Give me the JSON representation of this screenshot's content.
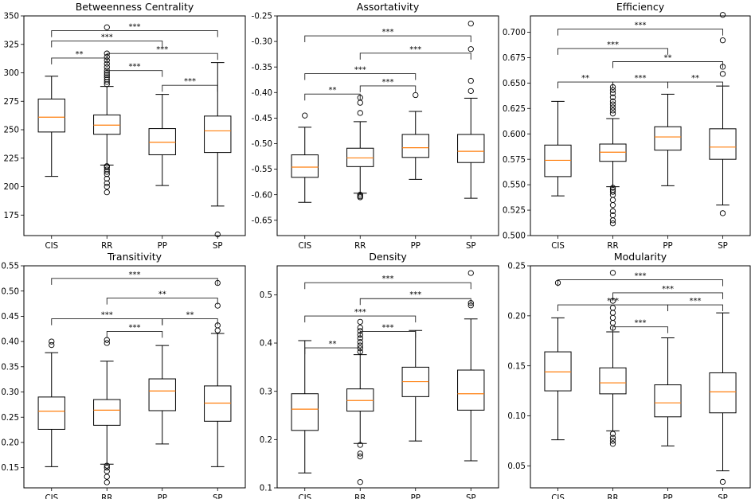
{
  "figure": {
    "group_labels": [
      "CIS",
      "RR",
      "PP",
      "SP"
    ],
    "colors": {
      "median": "#ff7f0e",
      "box_edge": "#000000",
      "background": "#ffffff"
    }
  },
  "chart_data": [
    {
      "type": "boxplot",
      "title": "Betweenness Centrality",
      "categories": [
        "CIS",
        "RR",
        "PP",
        "SP"
      ],
      "ylim": [
        157,
        350
      ],
      "yticks": [
        175,
        200,
        225,
        250,
        275,
        300,
        325,
        350
      ],
      "yfmt": 0,
      "boxes": [
        {
          "name": "CIS",
          "whislo": 209,
          "q1": 248,
          "med": 261,
          "q3": 277,
          "whishi": 297,
          "fliers": []
        },
        {
          "name": "RR",
          "whislo": 219,
          "q1": 246,
          "med": 254,
          "q3": 263,
          "whishi": 288,
          "fliers": [
            195,
            200,
            203,
            207,
            211,
            213,
            215,
            217,
            218,
            290,
            292,
            294,
            296,
            298,
            300,
            302,
            305,
            308,
            311,
            314,
            317,
            340
          ]
        },
        {
          "name": "PP",
          "whislo": 201,
          "q1": 228,
          "med": 239,
          "q3": 251,
          "whishi": 281,
          "fliers": []
        },
        {
          "name": "SP",
          "whislo": 183,
          "q1": 230,
          "med": 249,
          "q3": 262,
          "whishi": 309,
          "fliers": [
            158
          ]
        }
      ],
      "brackets": [
        {
          "from": "CIS",
          "to": "SP",
          "y": 337,
          "label": "***"
        },
        {
          "from": "CIS",
          "to": "PP",
          "y": 328,
          "label": "***"
        },
        {
          "from": "CIS",
          "to": "RR",
          "y": 313,
          "label": "**"
        },
        {
          "from": "RR",
          "to": "SP",
          "y": 317,
          "label": "***"
        },
        {
          "from": "RR",
          "to": "PP",
          "y": 302,
          "label": "***"
        },
        {
          "from": "PP",
          "to": "SP",
          "y": 289,
          "label": "***"
        }
      ]
    },
    {
      "type": "boxplot",
      "title": "Assortativity",
      "categories": [
        "CIS",
        "RR",
        "PP",
        "SP"
      ],
      "ylim": [
        -0.68,
        -0.25
      ],
      "yticks": [
        -0.65,
        -0.6,
        -0.55,
        -0.5,
        -0.45,
        -0.4,
        -0.35,
        -0.3,
        -0.25
      ],
      "yfmt": 2,
      "boxes": [
        {
          "name": "CIS",
          "whislo": -0.615,
          "q1": -0.566,
          "med": -0.546,
          "q3": -0.522,
          "whishi": -0.468,
          "fliers": [
            -0.445
          ]
        },
        {
          "name": "RR",
          "whislo": -0.597,
          "q1": -0.545,
          "med": -0.528,
          "q3": -0.509,
          "whishi": -0.457,
          "fliers": [
            -0.605,
            -0.603,
            -0.6,
            -0.44,
            -0.42,
            -0.41
          ]
        },
        {
          "name": "PP",
          "whislo": -0.57,
          "q1": -0.527,
          "med": -0.508,
          "q3": -0.482,
          "whishi": -0.437,
          "fliers": [
            -0.405
          ]
        },
        {
          "name": "SP",
          "whislo": -0.607,
          "q1": -0.537,
          "med": -0.515,
          "q3": -0.482,
          "whishi": -0.411,
          "fliers": [
            -0.397,
            -0.377,
            -0.315,
            -0.265
          ]
        }
      ],
      "brackets": [
        {
          "from": "CIS",
          "to": "SP",
          "y": -0.289,
          "label": "***"
        },
        {
          "from": "RR",
          "to": "SP",
          "y": -0.323,
          "label": "***"
        },
        {
          "from": "CIS",
          "to": "PP",
          "y": -0.363,
          "label": "***"
        },
        {
          "from": "RR",
          "to": "PP",
          "y": -0.387,
          "label": "***"
        },
        {
          "from": "CIS",
          "to": "RR",
          "y": -0.403,
          "label": "**"
        }
      ]
    },
    {
      "type": "boxplot",
      "title": "Efficiency",
      "categories": [
        "CIS",
        "RR",
        "PP",
        "SP"
      ],
      "ylim": [
        0.5,
        0.716
      ],
      "yticks": [
        0.5,
        0.525,
        0.55,
        0.575,
        0.6,
        0.625,
        0.65,
        0.675,
        0.7
      ],
      "yfmt": 3,
      "boxes": [
        {
          "name": "CIS",
          "whislo": 0.539,
          "q1": 0.558,
          "med": 0.574,
          "q3": 0.589,
          "whishi": 0.632,
          "fliers": []
        },
        {
          "name": "RR",
          "whislo": 0.548,
          "q1": 0.573,
          "med": 0.582,
          "q3": 0.59,
          "whishi": 0.615,
          "fliers": [
            0.512,
            0.515,
            0.52,
            0.524,
            0.53,
            0.535,
            0.54,
            0.543,
            0.545,
            0.547,
            0.62,
            0.623,
            0.626,
            0.629,
            0.632,
            0.636,
            0.64,
            0.643,
            0.646
          ]
        },
        {
          "name": "PP",
          "whislo": 0.549,
          "q1": 0.584,
          "med": 0.597,
          "q3": 0.607,
          "whishi": 0.639,
          "fliers": []
        },
        {
          "name": "SP",
          "whislo": 0.53,
          "q1": 0.575,
          "med": 0.587,
          "q3": 0.605,
          "whishi": 0.647,
          "fliers": [
            0.522,
            0.659,
            0.666,
            0.692,
            0.717
          ]
        }
      ],
      "brackets": [
        {
          "from": "CIS",
          "to": "SP",
          "y": 0.703,
          "label": "***"
        },
        {
          "from": "CIS",
          "to": "PP",
          "y": 0.684,
          "label": "***"
        },
        {
          "from": "RR",
          "to": "SP",
          "y": 0.671,
          "label": "**"
        },
        {
          "from": "CIS",
          "to": "RR",
          "y": 0.651,
          "label": "**"
        },
        {
          "from": "RR",
          "to": "PP",
          "y": 0.651,
          "label": "***"
        },
        {
          "from": "PP",
          "to": "SP",
          "y": 0.651,
          "label": "**"
        }
      ]
    },
    {
      "type": "boxplot",
      "title": "Transitivity",
      "categories": [
        "CIS",
        "RR",
        "PP",
        "SP"
      ],
      "ylim": [
        0.11,
        0.55
      ],
      "yticks": [
        0.15,
        0.2,
        0.25,
        0.3,
        0.35,
        0.4,
        0.45,
        0.5,
        0.55
      ],
      "yfmt": 2,
      "boxes": [
        {
          "name": "CIS",
          "whislo": 0.152,
          "q1": 0.226,
          "med": 0.262,
          "q3": 0.29,
          "whishi": 0.378,
          "fliers": [
            0.393,
            0.4
          ]
        },
        {
          "name": "RR",
          "whislo": 0.157,
          "q1": 0.234,
          "med": 0.264,
          "q3": 0.285,
          "whishi": 0.361,
          "fliers": [
            0.121,
            0.132,
            0.143,
            0.15,
            0.154,
            0.397,
            0.403
          ]
        },
        {
          "name": "PP",
          "whislo": 0.197,
          "q1": 0.263,
          "med": 0.302,
          "q3": 0.326,
          "whishi": 0.392,
          "fliers": []
        },
        {
          "name": "SP",
          "whislo": 0.152,
          "q1": 0.242,
          "med": 0.278,
          "q3": 0.312,
          "whishi": 0.416,
          "fliers": [
            0.422,
            0.432,
            0.471,
            0.516
          ]
        }
      ],
      "brackets": [
        {
          "from": "CIS",
          "to": "SP",
          "y": 0.525,
          "label": "***"
        },
        {
          "from": "RR",
          "to": "SP",
          "y": 0.486,
          "label": "**"
        },
        {
          "from": "CIS",
          "to": "PP",
          "y": 0.445,
          "label": "***"
        },
        {
          "from": "RR",
          "to": "PP",
          "y": 0.42,
          "label": "***"
        },
        {
          "from": "PP",
          "to": "SP",
          "y": 0.445,
          "label": "**"
        }
      ]
    },
    {
      "type": "boxplot",
      "title": "Density",
      "categories": [
        "CIS",
        "RR",
        "PP",
        "SP"
      ],
      "ylim": [
        0.1,
        0.56
      ],
      "yticks": [
        0.1,
        0.2,
        0.3,
        0.4,
        0.5
      ],
      "yfmt": 1,
      "boxes": [
        {
          "name": "CIS",
          "whislo": 0.131,
          "q1": 0.219,
          "med": 0.263,
          "q3": 0.295,
          "whishi": 0.405,
          "fliers": []
        },
        {
          "name": "RR",
          "whislo": 0.192,
          "q1": 0.259,
          "med": 0.281,
          "q3": 0.305,
          "whishi": 0.376,
          "fliers": [
            0.112,
            0.165,
            0.171,
            0.189,
            0.382,
            0.389,
            0.395,
            0.402,
            0.41,
            0.417,
            0.425,
            0.432,
            0.444
          ]
        },
        {
          "name": "PP",
          "whislo": 0.197,
          "q1": 0.289,
          "med": 0.32,
          "q3": 0.35,
          "whishi": 0.426,
          "fliers": []
        },
        {
          "name": "SP",
          "whislo": 0.156,
          "q1": 0.261,
          "med": 0.295,
          "q3": 0.344,
          "whishi": 0.45,
          "fliers": [
            0.478,
            0.483,
            0.545
          ]
        }
      ],
      "brackets": [
        {
          "from": "CIS",
          "to": "SP",
          "y": 0.525,
          "label": "***"
        },
        {
          "from": "RR",
          "to": "SP",
          "y": 0.492,
          "label": "***"
        },
        {
          "from": "CIS",
          "to": "PP",
          "y": 0.456,
          "label": "***"
        },
        {
          "from": "RR",
          "to": "PP",
          "y": 0.424,
          "label": "***"
        },
        {
          "from": "CIS",
          "to": "RR",
          "y": 0.39,
          "label": "**"
        }
      ]
    },
    {
      "type": "boxplot",
      "title": "Modularity",
      "categories": [
        "CIS",
        "RR",
        "PP",
        "SP"
      ],
      "ylim": [
        0.028,
        0.25
      ],
      "yticks": [
        0.05,
        0.1,
        0.15,
        0.2,
        0.25
      ],
      "yfmt": 2,
      "boxes": [
        {
          "name": "CIS",
          "whislo": 0.076,
          "q1": 0.125,
          "med": 0.144,
          "q3": 0.164,
          "whishi": 0.198,
          "fliers": [
            0.233
          ]
        },
        {
          "name": "RR",
          "whislo": 0.085,
          "q1": 0.122,
          "med": 0.133,
          "q3": 0.148,
          "whishi": 0.184,
          "fliers": [
            0.072,
            0.075,
            0.078,
            0.082,
            0.188,
            0.193,
            0.198,
            0.203,
            0.208,
            0.215,
            0.243
          ]
        },
        {
          "name": "PP",
          "whislo": 0.07,
          "q1": 0.099,
          "med": 0.113,
          "q3": 0.131,
          "whishi": 0.178,
          "fliers": []
        },
        {
          "name": "SP",
          "whislo": 0.045,
          "q1": 0.103,
          "med": 0.124,
          "q3": 0.143,
          "whishi": 0.203,
          "fliers": [
            0.034
          ]
        }
      ],
      "brackets": [
        {
          "from": "CIS",
          "to": "SP",
          "y": 0.236,
          "label": "***"
        },
        {
          "from": "RR",
          "to": "SP",
          "y": 0.223,
          "label": "***"
        },
        {
          "from": "CIS",
          "to": "PP",
          "y": 0.211,
          "label": "***"
        },
        {
          "from": "PP",
          "to": "SP",
          "y": 0.211,
          "label": "***"
        },
        {
          "from": "RR",
          "to": "PP",
          "y": 0.189,
          "label": "***"
        }
      ]
    }
  ]
}
